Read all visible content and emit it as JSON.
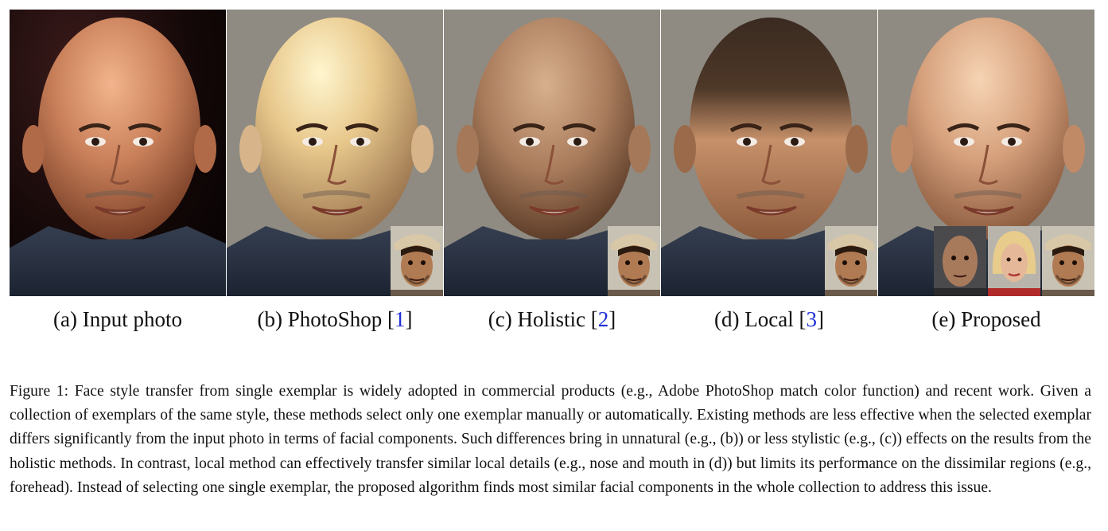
{
  "panels": [
    {
      "id": "a",
      "caption_prefix": "(a) Input photo",
      "ref": "",
      "caption_suffix": ""
    },
    {
      "id": "b",
      "caption_prefix": "(b) PhotoShop [",
      "ref": "1",
      "caption_suffix": "]"
    },
    {
      "id": "c",
      "caption_prefix": "(c) Holistic [",
      "ref": "2",
      "caption_suffix": "]"
    },
    {
      "id": "d",
      "caption_prefix": "(d) Local [",
      "ref": "3",
      "caption_suffix": "]"
    },
    {
      "id": "e",
      "caption_prefix": "(e) Proposed",
      "ref": "",
      "caption_suffix": ""
    }
  ],
  "figure_caption": "Figure 1: Face style transfer from single exemplar is widely adopted in commercial products (e.g., Adobe PhotoShop match color function) and recent work.  Given a collection of exemplars of the same style, these methods select only one exemplar manually or automatically.  Existing methods are less effective when the selected exemplar differs significantly from the input photo in terms of facial components.  Such differences bring in unnatural (e.g., (b)) or less stylistic (e.g., (c)) effects on the results from the holistic methods.  In contrast, local method can effectively transfer similar local details (e.g., nose and mouth in (d)) but limits its performance on the dissimilar regions (e.g., forehead).  Instead of selecting one single exemplar, the proposed algorithm finds most similar facial components in the whole collection to address this issue.",
  "colors": {
    "reference_link": "#1f2fd6",
    "result_background": "#8f8b82",
    "input_background": "#140808"
  }
}
